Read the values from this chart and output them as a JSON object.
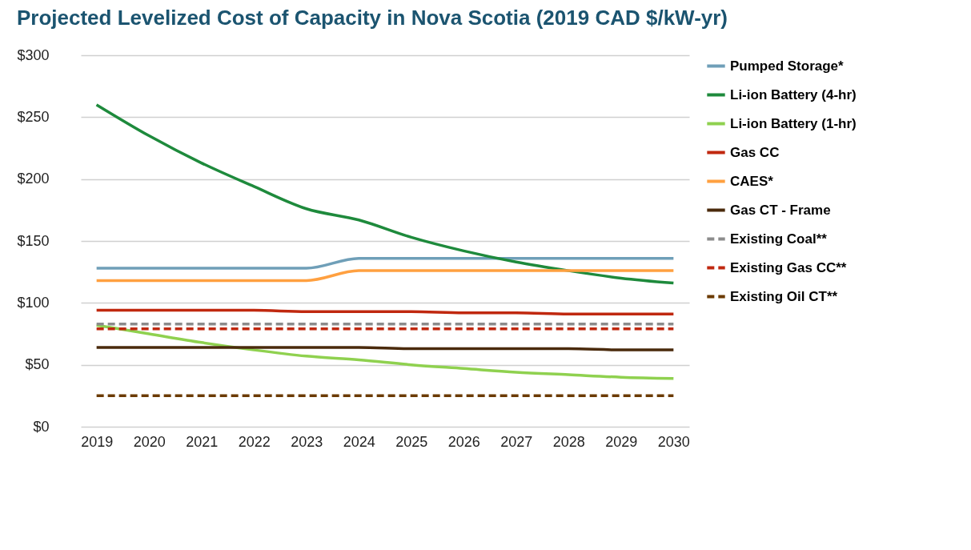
{
  "chart_data": {
    "type": "line",
    "title": "Projected Levelized Cost of Capacity in Nova Scotia (2019 CAD $/kW-yr)",
    "categories": [
      "2019",
      "2020",
      "2021",
      "2022",
      "2023",
      "2024",
      "2025",
      "2026",
      "2027",
      "2028",
      "2029",
      "2030"
    ],
    "series": [
      {
        "name": "Pumped Storage*",
        "color": "#6f9fb8",
        "values": [
          128,
          128,
          128,
          128,
          128,
          136,
          136,
          136,
          136,
          136,
          136,
          136
        ]
      },
      {
        "name": "Li-ion Battery (4-hr)",
        "color": "#1e8a3c",
        "values": [
          260,
          235,
          213,
          194,
          176,
          167,
          153,
          142,
          133,
          126,
          120,
          116
        ]
      },
      {
        "name": "Li-ion Battery (1-hr)",
        "color": "#8fd14f",
        "values": [
          82,
          75,
          68,
          62,
          57,
          54,
          50,
          47,
          44,
          42,
          40,
          39
        ]
      },
      {
        "name": "Gas CC",
        "color": "#c0280f",
        "values": [
          94,
          94,
          94,
          94,
          93,
          93,
          93,
          92,
          92,
          91,
          91,
          91
        ]
      },
      {
        "name": "CAES*",
        "color": "#ffa040",
        "values": [
          118,
          118,
          118,
          118,
          118,
          126,
          126,
          126,
          126,
          126,
          126,
          126
        ]
      },
      {
        "name": "Gas CT - Frame",
        "color": "#4a2a0c",
        "values": [
          64,
          64,
          64,
          64,
          64,
          64,
          63,
          63,
          63,
          63,
          62,
          62
        ]
      },
      {
        "name": "Existing Coal**",
        "color": "#8c8c8c",
        "line_style": "dashed",
        "values": [
          83,
          83,
          83,
          83,
          83,
          83,
          83,
          83,
          83,
          83,
          83,
          83
        ]
      },
      {
        "name": "Existing Gas CC**",
        "color": "#c0280f",
        "line_style": "dashed",
        "values": [
          79,
          79,
          79,
          79,
          79,
          79,
          79,
          79,
          79,
          79,
          79,
          79
        ]
      },
      {
        "name": "Existing Oil CT**",
        "color": "#6b3a00",
        "line_style": "dashed",
        "values": [
          25,
          25,
          25,
          25,
          25,
          25,
          25,
          25,
          25,
          25,
          25,
          25
        ]
      }
    ],
    "ylim": [
      0,
      300
    ],
    "yticks": [
      {
        "value": 0,
        "label": "$0"
      },
      {
        "value": 50,
        "label": "$50"
      },
      {
        "value": 100,
        "label": "$100"
      },
      {
        "value": 150,
        "label": "$150"
      },
      {
        "value": 200,
        "label": "$200"
      },
      {
        "value": 250,
        "label": "$250"
      },
      {
        "value": 300,
        "label": "$300"
      }
    ],
    "grid": "y",
    "legend": "right",
    "line_style": "solid",
    "marker": "none"
  }
}
